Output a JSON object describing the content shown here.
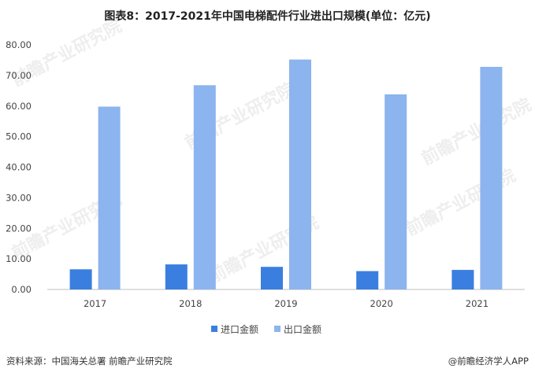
{
  "title": "图表8：2017-2021年中国电梯配件行业进出口规模(单位：亿元)",
  "source": "资料来源：中国海关总署 前瞻产业研究院",
  "credit": "@前瞻经济学人APP",
  "watermark": "前瞻产业研究院",
  "chart_data": {
    "type": "bar",
    "categories": [
      "2017",
      "2018",
      "2019",
      "2020",
      "2021"
    ],
    "series": [
      {
        "name": "进口金额",
        "color": "#3a7ee0",
        "values": [
          6.6,
          8.2,
          7.4,
          6.0,
          6.4
        ]
      },
      {
        "name": "出口金额",
        "color": "#8cb4ee",
        "values": [
          59.8,
          66.8,
          75.2,
          63.8,
          72.8
        ]
      }
    ],
    "ylim": [
      0,
      80
    ],
    "yticks": [
      "0.00",
      "10.00",
      "20.00",
      "30.00",
      "40.00",
      "50.00",
      "60.00",
      "70.00",
      "80.00"
    ],
    "grid": false,
    "legend": "bottom"
  }
}
